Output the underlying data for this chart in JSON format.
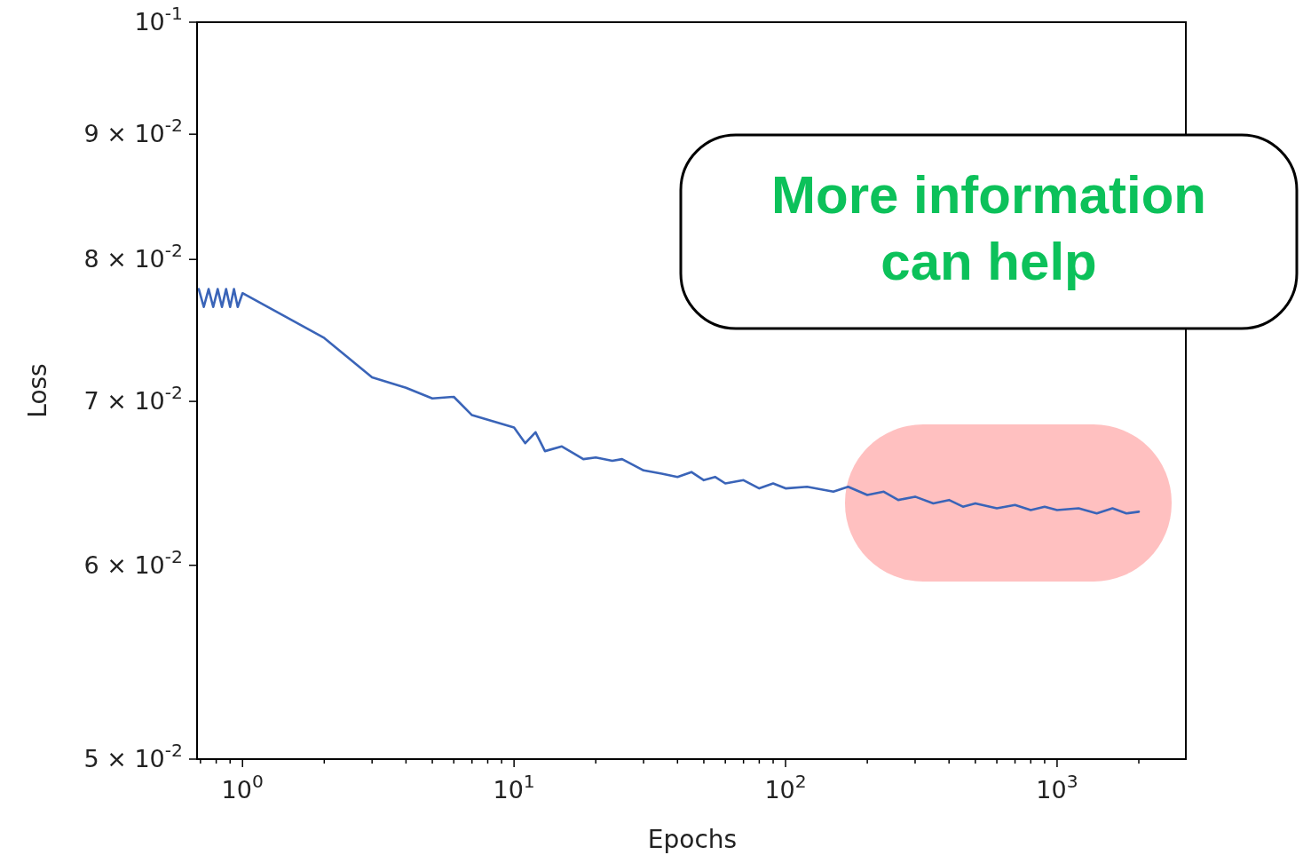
{
  "chart_data": {
    "type": "line",
    "xlabel": "Epochs",
    "ylabel": "Loss",
    "annotations": [
      "More information can help"
    ],
    "log": "xy",
    "xlim": [
      0.68,
      2980
    ],
    "ylim": [
      0.05,
      0.1
    ],
    "xticks": [
      {
        "value": 0.7,
        "label": null
      },
      {
        "value": 0.8,
        "label": null
      },
      {
        "value": 0.9,
        "label": null
      },
      {
        "value": 1,
        "label": "10$^{0}$"
      },
      {
        "value": 2,
        "label": null
      },
      {
        "value": 3,
        "label": null
      },
      {
        "value": 4,
        "label": null
      },
      {
        "value": 5,
        "label": null
      },
      {
        "value": 6,
        "label": null
      },
      {
        "value": 7,
        "label": null
      },
      {
        "value": 8,
        "label": null
      },
      {
        "value": 9,
        "label": null
      },
      {
        "value": 10,
        "label": "10$^{1}$"
      },
      {
        "value": 20,
        "label": null
      },
      {
        "value": 30,
        "label": null
      },
      {
        "value": 40,
        "label": null
      },
      {
        "value": 50,
        "label": null
      },
      {
        "value": 60,
        "label": null
      },
      {
        "value": 70,
        "label": null
      },
      {
        "value": 80,
        "label": null
      },
      {
        "value": 90,
        "label": null
      },
      {
        "value": 100,
        "label": "10$^{2}$"
      },
      {
        "value": 200,
        "label": null
      },
      {
        "value": 300,
        "label": null
      },
      {
        "value": 400,
        "label": null
      },
      {
        "value": 500,
        "label": null
      },
      {
        "value": 600,
        "label": null
      },
      {
        "value": 700,
        "label": null
      },
      {
        "value": 800,
        "label": null
      },
      {
        "value": 900,
        "label": null
      },
      {
        "value": 1000,
        "label": "10$^{3}$"
      },
      {
        "value": 2000,
        "label": null
      }
    ],
    "yticks": [
      {
        "value": 0.05,
        "label": "5 × 10$^{-2}$"
      },
      {
        "value": 0.06,
        "label": "6 × 10$^{-2}$"
      },
      {
        "value": 0.07,
        "label": "7 × 10$^{-2}$"
      },
      {
        "value": 0.08,
        "label": "8 × 10$^{-2}$"
      },
      {
        "value": 0.09,
        "label": "9 × 10$^{-2}$"
      },
      {
        "value": 0.1,
        "label": "10$^{-1}$"
      }
    ],
    "x": [
      0.69,
      0.72,
      0.75,
      0.78,
      0.81,
      0.84,
      0.87,
      0.9,
      0.93,
      0.96,
      1,
      2,
      3,
      4,
      5,
      6,
      7,
      10,
      11,
      12,
      13,
      15,
      18,
      20,
      23,
      25,
      30,
      35,
      40,
      45,
      50,
      55,
      60,
      70,
      80,
      90,
      100,
      120,
      150,
      170,
      200,
      230,
      260,
      300,
      350,
      400,
      450,
      500,
      600,
      700,
      800,
      900,
      1000,
      1200,
      1400,
      1600,
      1800,
      2000
    ],
    "series": [
      {
        "color": "#3a64b8",
        "values": [
          0.0778,
          0.0765,
          0.0778,
          0.0765,
          0.0778,
          0.0765,
          0.0778,
          0.0765,
          0.0778,
          0.0765,
          0.0775,
          0.0743,
          0.0716,
          0.0709,
          0.0702,
          0.0703,
          0.0691,
          0.0683,
          0.0673,
          0.068,
          0.0668,
          0.0671,
          0.0663,
          0.0664,
          0.0662,
          0.0663,
          0.0656,
          0.0654,
          0.0652,
          0.0655,
          0.065,
          0.0652,
          0.0648,
          0.065,
          0.0645,
          0.0648,
          0.0645,
          0.0646,
          0.0643,
          0.0646,
          0.0641,
          0.0643,
          0.0638,
          0.064,
          0.0636,
          0.0638,
          0.0634,
          0.0636,
          0.0633,
          0.0635,
          0.0632,
          0.0634,
          0.0632,
          0.0633,
          0.063,
          0.0633,
          0.063,
          0.0631
        ]
      }
    ]
  }
}
